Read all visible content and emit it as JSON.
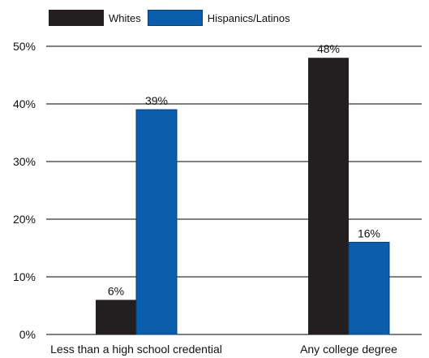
{
  "chart_data": {
    "type": "bar",
    "categories": [
      "Less than a high school credential",
      "Any college degree"
    ],
    "series": [
      {
        "name": "Whites",
        "values": [
          6,
          48
        ],
        "color": "#231f20",
        "value_labels": [
          "6%",
          "48%"
        ]
      },
      {
        "name": "Hispanics/Latinos",
        "values": [
          39,
          16
        ],
        "color": "#0b5eab",
        "value_labels": [
          "39%",
          "16%"
        ]
      }
    ],
    "ylim": [
      0,
      50
    ],
    "yticks": [
      0,
      10,
      20,
      30,
      40,
      50
    ],
    "ytick_labels": [
      "0%",
      "10%",
      "20%",
      "30%",
      "40%",
      "50%"
    ],
    "grid": true,
    "legend_position": "top-left",
    "title": "",
    "xlabel": "",
    "ylabel": ""
  }
}
